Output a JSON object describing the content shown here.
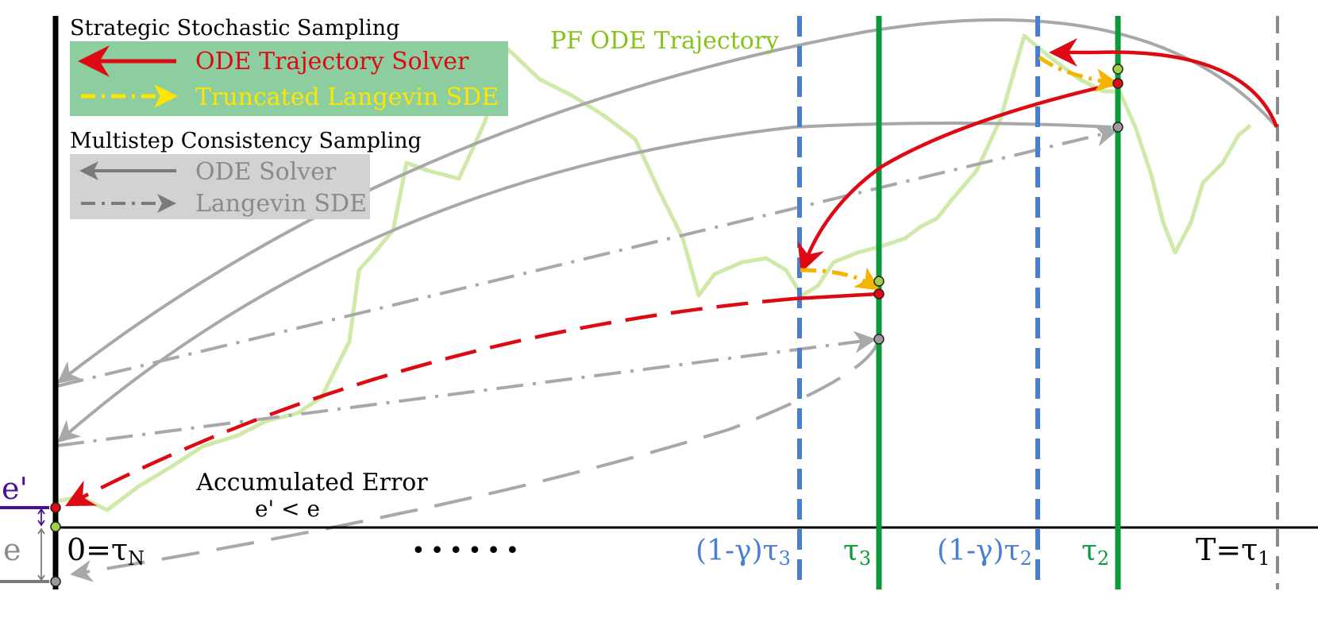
{
  "legend_strategic": {
    "heading": "Strategic Stochastic Sampling",
    "ode_label": "ODE Trajectory Solver",
    "sde_label": "Truncated Langevin SDE"
  },
  "legend_multistep": {
    "heading": "Multistep Consistency Sampling",
    "ode_label": "ODE Solver",
    "sde_label": "Langevin SDE"
  },
  "trajectory_label": "PF ODE Trajectory",
  "error_note": {
    "title": "Accumulated Error",
    "comparison": "e' < e"
  },
  "error_labels": {
    "e_prime": "e'",
    "e": "e"
  },
  "axis": {
    "start_label_main": "0=τ",
    "start_label_sub": "N",
    "ellipsis": "••••••",
    "end_label_main": "T=τ",
    "end_label_sub": "1",
    "tau3_main": "τ",
    "tau3_sub": "3",
    "tau2_main": "τ",
    "tau2_sub": "2",
    "gamma_tau3_main": "(1-γ)τ",
    "gamma_tau3_sub": "3",
    "gamma_tau2_main": "(1-γ)τ",
    "gamma_tau2_sub": "2"
  },
  "colors": {
    "red": "#dd0a14",
    "yellow": "#ffe500",
    "orange": "#f5b400",
    "gray": "#a8a8a8",
    "green_line": "#0a9a3a",
    "blue_dash": "#4a7fd0",
    "traj_green": "#cfe9a8",
    "lime_text": "#86c31a",
    "purple": "#4b0f94",
    "legend_green_bg": "#8ccea0",
    "legend_gray_bg": "#d2d2d2"
  }
}
